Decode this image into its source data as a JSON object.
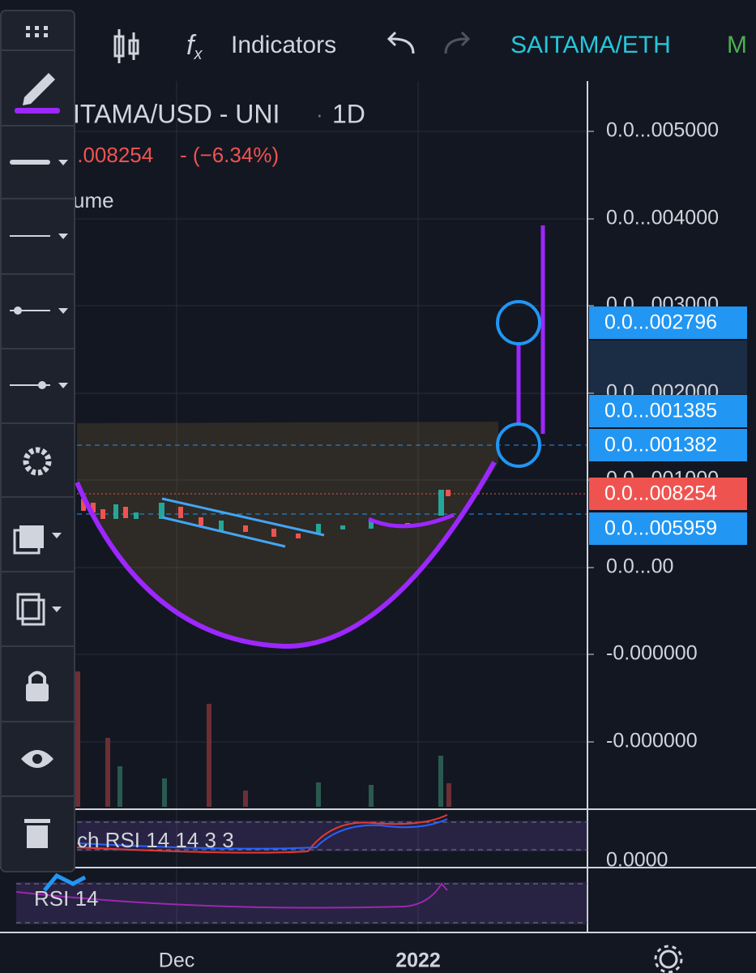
{
  "header": {
    "indicators": "Indicators",
    "symbol_tab": "SAITAMA/ETH",
    "extra_tab": "M"
  },
  "legend": {
    "title": "ITAMA/USD - UNI",
    "separator": "·",
    "interval": "1D",
    "price": "..008254",
    "change": "- (−6.34%)",
    "volume": "ume"
  },
  "price_axis": [
    "0.0...005000",
    "0.0...004000",
    "0.0...003000",
    "0.0...002000",
    "0.0...001000",
    "0.0...00",
    "-0.000000",
    "-0.000000"
  ],
  "price_tags": [
    "0.0...002796",
    "0.0...001385",
    "0.0...001382",
    "0.0...008254",
    "0.0...005959"
  ],
  "panes": {
    "stoch_rsi": "ch RSI 14 14 3 3",
    "stoch_axis": "0.0000",
    "rsi": "RSI 14"
  },
  "time_axis": [
    "Dec",
    "2022"
  ]
}
